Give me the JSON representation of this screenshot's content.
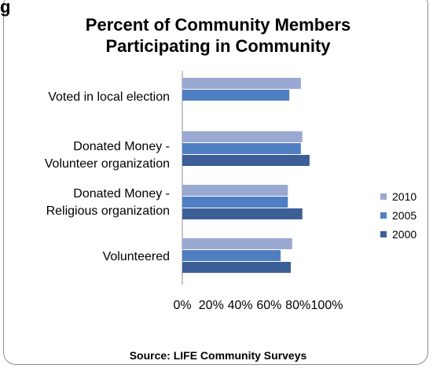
{
  "edge_text": "g",
  "chart_data": {
    "type": "bar",
    "orientation": "horizontal",
    "title_lines": [
      "Percent of Community Members",
      "Participating in Community"
    ],
    "categories": [
      [
        "Voted in local election"
      ],
      [
        "Donated Money -",
        "Volunteer organization"
      ],
      [
        "Donated Money -",
        "Religious organization"
      ],
      [
        "Volunteered"
      ]
    ],
    "series": [
      {
        "name": "2010",
        "color": "#9aa9d2",
        "values": [
          82,
          83,
          73,
          76
        ]
      },
      {
        "name": "2005",
        "color": "#4f7fc2",
        "values": [
          74,
          82,
          73,
          68
        ]
      },
      {
        "name": "2000",
        "color": "#3c5f98",
        "values": [
          null,
          88,
          83,
          75
        ]
      }
    ],
    "xlim": [
      0,
      100
    ],
    "xticks": [
      "0%",
      "20%",
      "40%",
      "60%",
      "80%",
      "100%"
    ],
    "legend_position": "right",
    "grid": false
  },
  "source": "Source: LIFE Community Surveys"
}
